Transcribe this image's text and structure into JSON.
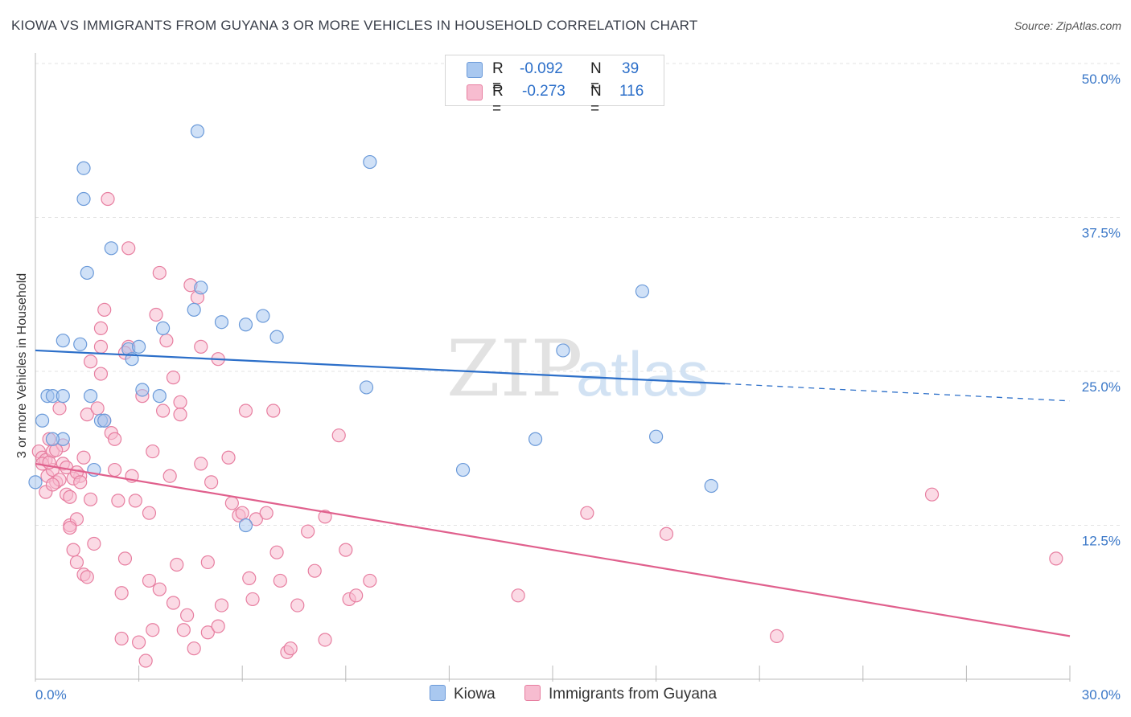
{
  "chart_data": {
    "type": "scatter",
    "title": "KIOWA VS IMMIGRANTS FROM GUYANA 3 OR MORE VEHICLES IN HOUSEHOLD CORRELATION CHART",
    "source": "Source: ZipAtlas.com",
    "ylabel": "3 or more Vehicles in Household",
    "xlabel": "",
    "xlim": [
      0,
      30
    ],
    "ylim": [
      0,
      50
    ],
    "x_tick_labels": {
      "min": "0.0%",
      "max": "30.0%"
    },
    "y_ticks": [
      {
        "value": 50,
        "label": "50.0%"
      },
      {
        "value": 37.5,
        "label": "37.5%"
      },
      {
        "value": 25,
        "label": "25.0%"
      },
      {
        "value": 12.5,
        "label": "12.5%"
      }
    ],
    "watermark": {
      "zip": "ZIP",
      "atlas": "atlas"
    },
    "legend": [
      {
        "label_r": "R = ",
        "r": "-0.092",
        "label_n": "N = ",
        "n": "39",
        "color": "#a9c8f0",
        "edge": "#6b9ad9"
      },
      {
        "label_r": "R = ",
        "r": "-0.273",
        "label_n": "N = ",
        "n": "116",
        "color": "#f7bcd0",
        "edge": "#e77ea0"
      }
    ],
    "series": [
      {
        "name": "Kiowa",
        "color": "#a9c8f0",
        "edge": "#6b9ad9",
        "line_color": "#2c6fc9",
        "trend": {
          "x0": 0,
          "y0": 26.7,
          "x1": 20,
          "y1": 24.0,
          "dash_to": 30,
          "dash_y": 22.6
        },
        "points": [
          [
            0,
            16
          ],
          [
            0.2,
            21
          ],
          [
            0.35,
            23
          ],
          [
            0.5,
            23
          ],
          [
            0.8,
            19.5
          ],
          [
            0.8,
            27.5
          ],
          [
            1.3,
            27.2
          ],
          [
            1.6,
            23
          ],
          [
            1.7,
            17
          ],
          [
            1.9,
            21
          ],
          [
            0.5,
            19.5
          ],
          [
            1.4,
            41.5
          ],
          [
            1.5,
            33
          ],
          [
            1.4,
            39
          ],
          [
            2.2,
            35
          ],
          [
            2.7,
            26.8
          ],
          [
            2.8,
            26
          ],
          [
            3,
            27
          ],
          [
            3.1,
            23.5
          ],
          [
            3.6,
            23
          ],
          [
            3.7,
            28.5
          ],
          [
            4.6,
            30
          ],
          [
            4.7,
            44.5
          ],
          [
            4.8,
            31.8
          ],
          [
            5.4,
            29
          ],
          [
            6.1,
            28.8
          ],
          [
            6.6,
            29.5
          ],
          [
            7.0,
            27.8
          ],
          [
            6.1,
            12.5
          ],
          [
            9.7,
            42
          ],
          [
            9.6,
            23.7
          ],
          [
            12.4,
            17
          ],
          [
            14.5,
            19.5
          ],
          [
            15.3,
            26.7
          ],
          [
            17.6,
            31.5
          ],
          [
            18.0,
            19.7
          ],
          [
            19.6,
            15.7
          ],
          [
            2.0,
            21
          ],
          [
            0.8,
            23
          ]
        ]
      },
      {
        "name": "Immigrants from Guyana",
        "color": "#f7bcd0",
        "edge": "#e77ea0",
        "line_color": "#e0608d",
        "trend": {
          "x0": 0,
          "y0": 17.5,
          "x1": 30,
          "y1": 3.5
        },
        "points": [
          [
            0.1,
            18.5
          ],
          [
            0.2,
            18
          ],
          [
            0.3,
            17.8
          ],
          [
            0.35,
            16.5
          ],
          [
            0.4,
            19.5
          ],
          [
            0.5,
            17
          ],
          [
            0.5,
            18.5
          ],
          [
            0.6,
            16
          ],
          [
            0.7,
            22
          ],
          [
            0.8,
            19
          ],
          [
            0.8,
            17.5
          ],
          [
            0.9,
            15
          ],
          [
            1.0,
            14.8
          ],
          [
            1.0,
            12.5
          ],
          [
            1.1,
            10.5
          ],
          [
            1.2,
            9.5
          ],
          [
            1.2,
            13
          ],
          [
            1.3,
            16.5
          ],
          [
            1.4,
            18
          ],
          [
            1.5,
            21.5
          ],
          [
            1.4,
            8.5
          ],
          [
            1.5,
            8.3
          ],
          [
            1.6,
            25.8
          ],
          [
            1.7,
            11
          ],
          [
            1.8,
            22
          ],
          [
            1.9,
            27
          ],
          [
            1.9,
            24.8
          ],
          [
            1.9,
            28.5
          ],
          [
            2.0,
            30
          ],
          [
            2.0,
            21
          ],
          [
            2.1,
            39
          ],
          [
            2.2,
            20
          ],
          [
            2.3,
            19.5
          ],
          [
            2.3,
            17
          ],
          [
            2.4,
            14.5
          ],
          [
            2.5,
            7
          ],
          [
            2.5,
            3.3
          ],
          [
            2.6,
            9.8
          ],
          [
            2.7,
            35
          ],
          [
            2.7,
            27
          ],
          [
            2.8,
            16.5
          ],
          [
            2.9,
            14.5
          ],
          [
            2.6,
            26.5
          ],
          [
            3.0,
            3.0
          ],
          [
            3.1,
            23
          ],
          [
            3.2,
            1.5
          ],
          [
            3.3,
            13.5
          ],
          [
            3.3,
            8
          ],
          [
            3.4,
            18.5
          ],
          [
            3.4,
            4
          ],
          [
            3.5,
            29.6
          ],
          [
            3.6,
            7.3
          ],
          [
            3.6,
            33
          ],
          [
            3.7,
            21.8
          ],
          [
            3.8,
            27.5
          ],
          [
            3.9,
            16.5
          ],
          [
            4.0,
            24.5
          ],
          [
            4.0,
            6.2
          ],
          [
            4.1,
            9.3
          ],
          [
            4.2,
            22.5
          ],
          [
            4.2,
            21.5
          ],
          [
            4.3,
            4
          ],
          [
            4.4,
            5.2
          ],
          [
            4.5,
            32
          ],
          [
            4.6,
            2.5
          ],
          [
            4.7,
            31
          ],
          [
            4.8,
            17.5
          ],
          [
            4.8,
            27
          ],
          [
            5.0,
            9.5
          ],
          [
            5.0,
            3.8
          ],
          [
            5.1,
            16
          ],
          [
            5.3,
            26
          ],
          [
            5.3,
            4.3
          ],
          [
            5.4,
            6
          ],
          [
            5.6,
            18
          ],
          [
            5.7,
            14.3
          ],
          [
            5.9,
            13.3
          ],
          [
            6.0,
            13.5
          ],
          [
            6.1,
            21.8
          ],
          [
            6.2,
            8.2
          ],
          [
            6.3,
            6.5
          ],
          [
            6.4,
            13
          ],
          [
            6.7,
            13.5
          ],
          [
            6.9,
            21.8
          ],
          [
            7.0,
            10.3
          ],
          [
            7.1,
            8
          ],
          [
            7.3,
            2.2
          ],
          [
            7.4,
            2.5
          ],
          [
            7.6,
            6
          ],
          [
            7.9,
            12
          ],
          [
            8.1,
            8.8
          ],
          [
            8.4,
            13.2
          ],
          [
            8.4,
            3.2
          ],
          [
            8.8,
            19.8
          ],
          [
            9.0,
            10.5
          ],
          [
            9.1,
            6.5
          ],
          [
            9.3,
            6.8
          ],
          [
            9.7,
            8
          ],
          [
            0.2,
            17.5
          ],
          [
            0.4,
            17.6
          ],
          [
            0.6,
            18.6
          ],
          [
            0.9,
            17.2
          ],
          [
            1.1,
            16.3
          ],
          [
            1.2,
            16.8
          ],
          [
            0.3,
            15.2
          ],
          [
            1.0,
            12.3
          ],
          [
            1.3,
            16
          ],
          [
            0.7,
            16.2
          ],
          [
            0.5,
            15.8
          ],
          [
            1.6,
            14.6
          ],
          [
            14.0,
            6.8
          ],
          [
            16.0,
            13.5
          ],
          [
            18.3,
            11.8
          ],
          [
            21.5,
            3.5
          ],
          [
            26.0,
            15
          ],
          [
            29.6,
            9.8
          ]
        ]
      }
    ]
  }
}
